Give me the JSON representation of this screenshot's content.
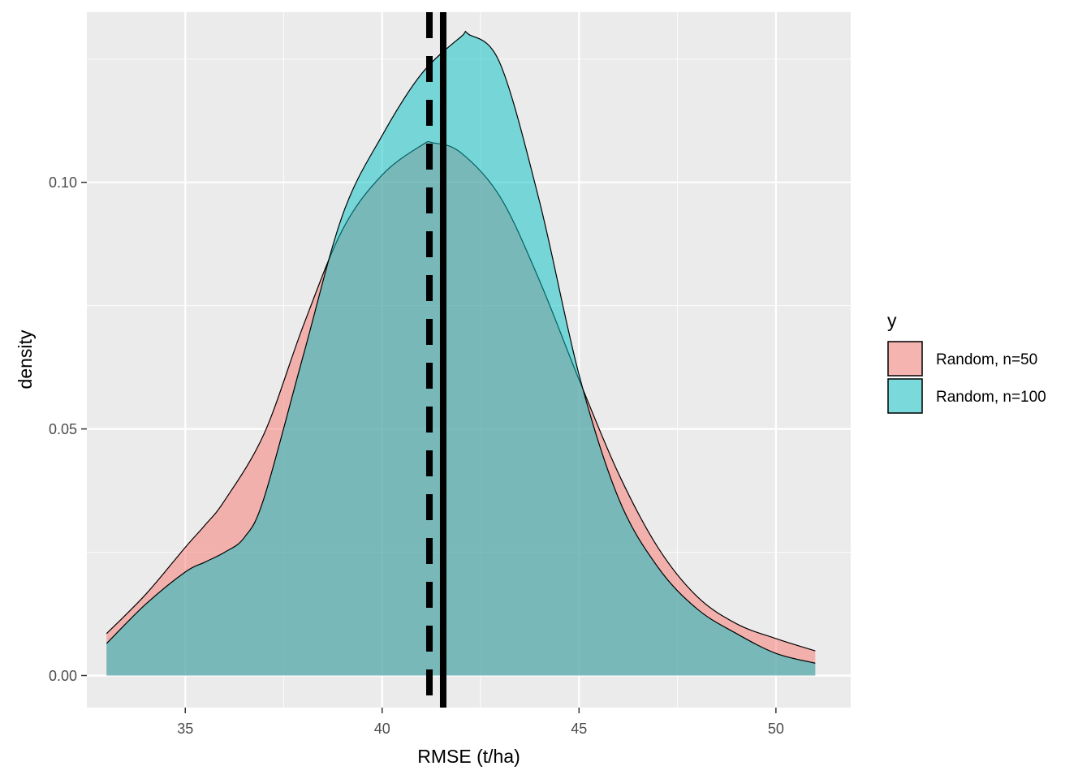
{
  "chart_data": {
    "type": "area",
    "xlabel": "RMSE (t/ha)",
    "ylabel": "density",
    "xlim": [
      32.5,
      51.9
    ],
    "ylim": [
      -0.0065,
      0.1345
    ],
    "x_ticks": [
      35,
      40,
      45,
      50
    ],
    "x_tick_labels": [
      "35",
      "40",
      "45",
      "50"
    ],
    "y_ticks": [
      0.0,
      0.05,
      0.1
    ],
    "y_tick_labels": [
      "0.00",
      "0.05",
      "0.10"
    ],
    "grid": true,
    "legend": {
      "title": "y",
      "position": "right"
    },
    "series": [
      {
        "name": "Random, n=50",
        "color": "#F8766D",
        "x": [
          33.0,
          34.0,
          35.0,
          35.5,
          36.0,
          37.0,
          38.0,
          39.0,
          40.0,
          41.0,
          41.3,
          42.0,
          43.0,
          44.0,
          45.0,
          46.0,
          47.0,
          48.0,
          49.0,
          50.0,
          51.0
        ],
        "y": [
          0.0085,
          0.0165,
          0.026,
          0.0305,
          0.0355,
          0.049,
          0.071,
          0.0905,
          0.1015,
          0.1075,
          0.108,
          0.106,
          0.097,
          0.08,
          0.06,
          0.041,
          0.026,
          0.016,
          0.0105,
          0.0075,
          0.005
        ]
      },
      {
        "name": "Random, n=100",
        "color": "#00BFC4",
        "x": [
          33.0,
          34.0,
          35.0,
          35.5,
          36.0,
          36.5,
          37.0,
          38.0,
          39.0,
          40.0,
          41.0,
          42.0,
          42.2,
          43.0,
          44.0,
          45.0,
          46.0,
          47.0,
          48.0,
          49.0,
          50.0,
          51.0
        ],
        "y": [
          0.0065,
          0.0145,
          0.021,
          0.023,
          0.025,
          0.028,
          0.036,
          0.065,
          0.0935,
          0.1095,
          0.122,
          0.1295,
          0.13,
          0.124,
          0.096,
          0.061,
          0.036,
          0.022,
          0.0135,
          0.0085,
          0.0045,
          0.0025
        ]
      }
    ],
    "vlines": [
      {
        "x": 41.2,
        "linetype": "dashed",
        "color": "#000000"
      },
      {
        "x": 41.55,
        "linetype": "solid",
        "color": "#000000"
      }
    ]
  }
}
